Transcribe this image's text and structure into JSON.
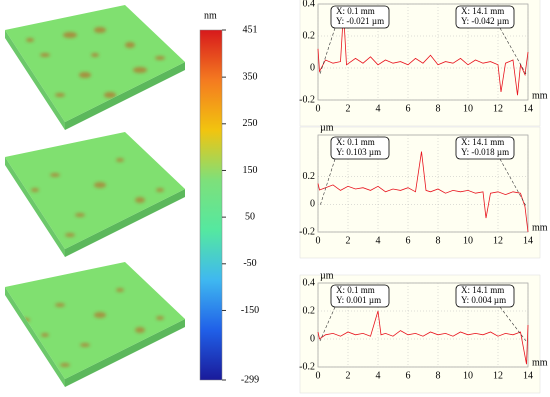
{
  "chart_data": [
    {
      "type": "colorbar",
      "unit": "nm",
      "ylim": [
        -299,
        451
      ],
      "yticks": [
        451,
        350,
        250,
        150,
        50,
        -50,
        -150,
        -299
      ],
      "colors": [
        "#d7191c",
        "#f47a20",
        "#f2c40f",
        "#7ee07a",
        "#55e8a0",
        "#3fb8f0",
        "#2060e8",
        "#1a1a9a"
      ]
    },
    {
      "type": "line",
      "xlabel": "mm",
      "color": "#e8141e",
      "grid": true,
      "xlim": [
        0,
        14
      ],
      "ylim": [
        -0.2,
        0.4
      ],
      "xticks": [
        0,
        2,
        4,
        6,
        8,
        10,
        12,
        14
      ],
      "yticks": [
        -0.2,
        0,
        0.2,
        0.4
      ],
      "annotations": [
        [
          "X: 0.1 mm",
          "Y: -0.021 µm"
        ],
        [
          "X: 14.1 mm",
          "Y: -0.042 µm"
        ]
      ],
      "x": [
        0,
        0.1,
        0.5,
        1,
        1.5,
        1.7,
        1.9,
        2.5,
        3,
        3.5,
        4,
        4.5,
        5,
        5.5,
        6,
        6.5,
        7,
        7.5,
        8,
        8.5,
        9,
        9.5,
        10,
        10.5,
        11,
        11.5,
        12,
        12.2,
        12.5,
        13,
        13.3,
        13.5,
        13.8,
        14
      ],
      "values": [
        0.12,
        -0.021,
        0.05,
        0.03,
        0.04,
        0.35,
        0.02,
        0.06,
        0.03,
        0.07,
        0.02,
        0.05,
        0.03,
        0.04,
        0.02,
        0.06,
        0.03,
        0.08,
        0.02,
        0.04,
        0.03,
        0.06,
        0.02,
        0.05,
        0.03,
        0.04,
        0.02,
        -0.15,
        0.03,
        0.05,
        -0.17,
        0.02,
        -0.042,
        0.1
      ]
    },
    {
      "type": "line",
      "xlabel": "mm",
      "ylabel": "µm",
      "color": "#e8141e",
      "grid": true,
      "xlim": [
        0,
        14
      ],
      "ylim": [
        -0.2,
        0.5
      ],
      "xticks": [
        0,
        2,
        4,
        6,
        8,
        10,
        12,
        14
      ],
      "yticks": [
        -0.2,
        0,
        0.2
      ],
      "annotations": [
        [
          "X: 0.1 mm",
          "Y: 0.103 µm"
        ],
        [
          "X: 14.1 mm",
          "Y: -0.018 µm"
        ]
      ],
      "x": [
        0,
        0.1,
        0.5,
        1,
        1.5,
        2,
        2.5,
        3,
        3.5,
        4,
        4.5,
        5,
        5.5,
        6,
        6.5,
        6.9,
        7.2,
        7.5,
        8,
        8.5,
        9,
        9.5,
        10,
        10.5,
        11,
        11.2,
        11.5,
        12,
        12.5,
        13,
        13.5,
        13.8,
        14
      ],
      "values": [
        0.15,
        0.103,
        0.12,
        0.14,
        0.1,
        0.13,
        0.11,
        0.12,
        0.1,
        0.13,
        0.09,
        0.11,
        0.1,
        0.12,
        0.09,
        0.38,
        0.1,
        0.09,
        0.11,
        0.08,
        0.1,
        0.09,
        0.1,
        0.08,
        0.09,
        -0.1,
        0.08,
        0.09,
        0.07,
        0.09,
        0.08,
        -0.018,
        -0.2
      ]
    },
    {
      "type": "line",
      "xlabel": "mm",
      "ylabel": "µm",
      "color": "#e8141e",
      "grid": true,
      "xlim": [
        0,
        14
      ],
      "ylim": [
        -0.2,
        0.4
      ],
      "xticks": [
        0,
        2,
        4,
        6,
        8,
        10,
        12,
        14
      ],
      "yticks": [
        -0.2,
        0,
        0.2,
        0.4
      ],
      "annotations": [
        [
          "X: 0.1 mm",
          "Y: 0.001 µm"
        ],
        [
          "X: 14.1 mm",
          "Y: 0.004 µm"
        ]
      ],
      "x": [
        0,
        0.1,
        0.5,
        1,
        1.5,
        2,
        2.5,
        3,
        3.5,
        4,
        4.2,
        4.5,
        5,
        5.5,
        6,
        6.5,
        7,
        7.5,
        8,
        8.5,
        9,
        9.5,
        10,
        10.5,
        11,
        11.5,
        12,
        12.5,
        13,
        13.5,
        13.9,
        14
      ],
      "values": [
        0.05,
        0.001,
        0.03,
        0.04,
        0.02,
        0.05,
        0.03,
        0.04,
        0.02,
        0.2,
        0.03,
        0.04,
        0.02,
        0.06,
        0.03,
        0.04,
        0.02,
        0.05,
        0.03,
        0.04,
        0.02,
        0.05,
        0.03,
        0.04,
        0.03,
        0.05,
        0.02,
        0.04,
        0.03,
        0.05,
        -0.18,
        0.1
      ]
    }
  ]
}
